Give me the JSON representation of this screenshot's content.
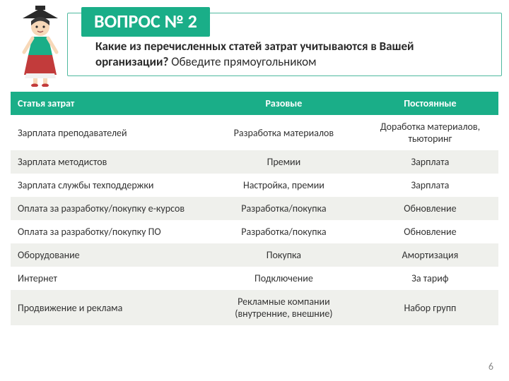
{
  "colors": {
    "accent": "#1aae88",
    "accent_border": "#4fb99f",
    "row_alt": "#eff0ec",
    "text": "#333333",
    "page_num": "#8a8a8a"
  },
  "title": "ВОПРОС № 2",
  "subtitle_bold1": "Какие из перечисленных статей затрат учитываются в Вашей организации?",
  "subtitle_plain": " Обведите прямоугольником",
  "table": {
    "columns": [
      "Статья затрат",
      "Разовые",
      "Постоянные"
    ],
    "rows": [
      [
        "Зарплата преподавателей",
        "Разработка материалов",
        "Доработка материалов, тьюторинг"
      ],
      [
        "Зарплата методистов",
        "Премии",
        "Зарплата"
      ],
      [
        "Зарплата службы техподдержки",
        "Настройка, премии",
        "Зарплата"
      ],
      [
        "Оплата за разработку/покупку е-курсов",
        "Разработка/покупка",
        "Обновление"
      ],
      [
        "Оплата за разработку/покупку ПО",
        "Разработка/покупка",
        "Обновление"
      ],
      [
        "Оборудование",
        "Покупка",
        "Амортизация"
      ],
      [
        "Интернет",
        "Подключение",
        "За тариф"
      ],
      [
        "Продвижение и реклама",
        "Рекламные компании (внутренние, внешние)",
        "Набор групп"
      ]
    ]
  },
  "page_number": "6",
  "mascot_colors": {
    "hat": "#2a2a2a",
    "face": "#f7d8b8",
    "hair": "#3a3a3a",
    "dress_top": "#1aae88",
    "dress_bottom": "#c23b3b",
    "slip": "#f2f2f2"
  }
}
